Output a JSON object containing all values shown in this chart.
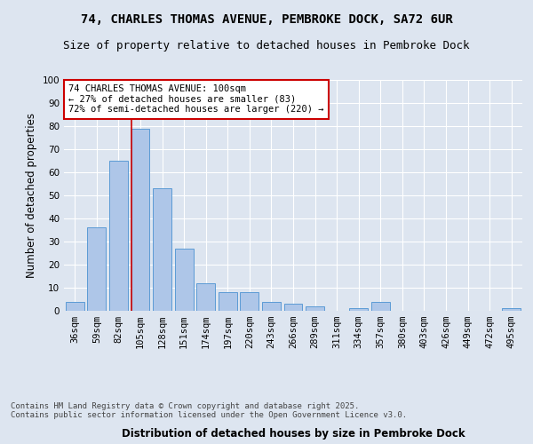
{
  "title_line1": "74, CHARLES THOMAS AVENUE, PEMBROKE DOCK, SA72 6UR",
  "title_line2": "Size of property relative to detached houses in Pembroke Dock",
  "xlabel": "Distribution of detached houses by size in Pembroke Dock",
  "ylabel": "Number of detached properties",
  "bar_labels": [
    "36sqm",
    "59sqm",
    "82sqm",
    "105sqm",
    "128sqm",
    "151sqm",
    "174sqm",
    "197sqm",
    "220sqm",
    "243sqm",
    "266sqm",
    "289sqm",
    "311sqm",
    "334sqm",
    "357sqm",
    "380sqm",
    "403sqm",
    "426sqm",
    "449sqm",
    "472sqm",
    "495sqm"
  ],
  "bar_values": [
    4,
    36,
    65,
    79,
    53,
    27,
    12,
    8,
    8,
    4,
    3,
    2,
    0,
    1,
    4,
    0,
    0,
    0,
    0,
    0,
    1
  ],
  "bar_color": "#aec6e8",
  "bar_edge_color": "#5b9bd5",
  "red_line_index": 3,
  "annotation_text": "74 CHARLES THOMAS AVENUE: 100sqm\n← 27% of detached houses are smaller (83)\n72% of semi-detached houses are larger (220) →",
  "annotation_box_color": "#ffffff",
  "annotation_box_edge_color": "#cc0000",
  "footnote": "Contains HM Land Registry data © Crown copyright and database right 2025.\nContains public sector information licensed under the Open Government Licence v3.0.",
  "background_color": "#dde5f0",
  "plot_background_color": "#dde5f0",
  "grid_color": "#ffffff",
  "ylim": [
    0,
    100
  ],
  "yticks": [
    0,
    10,
    20,
    30,
    40,
    50,
    60,
    70,
    80,
    90,
    100
  ],
  "title_fontsize": 10,
  "subtitle_fontsize": 9,
  "axis_label_fontsize": 8.5,
  "tick_fontsize": 7.5,
  "annotation_fontsize": 7.5,
  "footnote_fontsize": 6.5
}
